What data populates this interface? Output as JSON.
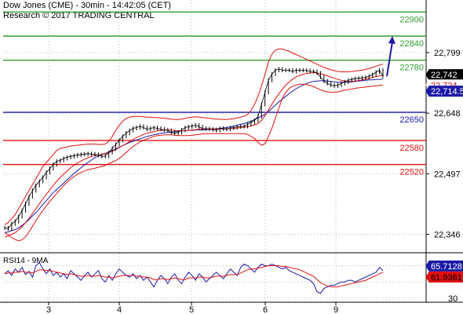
{
  "header": {
    "title": "Dow Jones (CME) - 30min - 14:42:05 (CET)",
    "research": "Research © 2017 TRADING CENTRAL"
  },
  "chart_data": [
    {
      "type": "line",
      "panel": "price",
      "x_ticks": [
        "3",
        "4",
        "5",
        "6",
        "9"
      ],
      "ylim": [
        22300,
        22930
      ],
      "y_ticks": [
        22346,
        22497,
        22648,
        22799
      ],
      "y_tick_labels": [
        "22,346",
        "22,497",
        "22,648",
        "22,799"
      ],
      "grid": true,
      "levels": [
        {
          "value": 22900,
          "label": "22900",
          "color": "#2e9e2e"
        },
        {
          "value": 22840,
          "label": "22840",
          "color": "#2e9e2e"
        },
        {
          "value": 22780,
          "label": "22780",
          "color": "#2e9e2e"
        },
        {
          "value": 22650,
          "label": "22650",
          "color": "#1a1aa6"
        },
        {
          "value": 22580,
          "label": "22580",
          "color": "#e01010"
        },
        {
          "value": 22520,
          "label": "22520",
          "color": "#e01010"
        }
      ],
      "price_markers": [
        {
          "value": 22742,
          "label": "22,742",
          "bg": "#000000",
          "fg": "#ffffff"
        },
        {
          "value": 22724,
          "label": "22,724",
          "bg": "#ffffff",
          "fg": "#d01010"
        },
        {
          "value": 22714.5,
          "label": "22,714.5",
          "bg": "#1a1aa6",
          "fg": "#ffffff"
        }
      ],
      "projection": {
        "from": 22740,
        "to": 22840,
        "color": "#1a1aa6"
      },
      "series": [
        {
          "role": "price",
          "color": "#000000",
          "values": [
            22362,
            22360,
            22372,
            22378,
            22390,
            22405,
            22422,
            22440,
            22455,
            22468,
            22478,
            22488,
            22500,
            22510,
            22520,
            22528,
            22530,
            22535,
            22538,
            22540,
            22542,
            22544,
            22545,
            22546,
            22547,
            22546,
            22545,
            22543,
            22540,
            22541,
            22550,
            22560,
            22570,
            22580,
            22590,
            22598,
            22605,
            22610,
            22612,
            22615,
            22612,
            22608,
            22610,
            22612,
            22610,
            22608,
            22606,
            22605,
            22600,
            22598,
            22600,
            22606,
            22612,
            22614,
            22616,
            22618,
            22614,
            22610,
            22609,
            22608,
            22607,
            22605,
            22610,
            22609,
            22608,
            22611,
            22612,
            22614,
            22615,
            22615,
            22620,
            22625,
            22630,
            22640,
            22670,
            22700,
            22730,
            22745,
            22755,
            22758,
            22755,
            22755,
            22755,
            22752,
            22755,
            22755,
            22755,
            22754,
            22752,
            22752,
            22748,
            22738,
            22728,
            22722,
            22718,
            22716,
            22718,
            22722,
            22726,
            22730,
            22732,
            22734,
            22735,
            22736,
            22737,
            22740,
            22744,
            22750,
            22755,
            22740
          ]
        },
        {
          "role": "moving-average",
          "color": "#1a1aa6",
          "values": [
            22350,
            22352,
            22355,
            22358,
            22362,
            22368,
            22375,
            22383,
            22392,
            22400,
            22410,
            22420,
            22430,
            22440,
            22450,
            22458,
            22466,
            22474,
            22482,
            22490,
            22498,
            22505,
            22512,
            22519,
            22525,
            22531,
            22537,
            22541,
            22545,
            22548,
            22551,
            22555,
            22559,
            22563,
            22567,
            22571,
            22575,
            22578,
            22581,
            22584,
            22587,
            22590,
            22592,
            22594,
            22596,
            22598,
            22599,
            22600,
            22601,
            22602,
            22603,
            22604,
            22604,
            22605,
            22605,
            22606,
            22606,
            22606,
            22607,
            22608,
            22608,
            22609,
            22610,
            22611,
            22612,
            22614,
            22616,
            22618,
            22620,
            22622,
            22625,
            22628,
            22632,
            22636,
            22640,
            22645,
            22652,
            22660,
            22668,
            22676,
            22683,
            22690,
            22697,
            22703,
            22709,
            22714,
            22718,
            22722,
            22725,
            22727,
            22728,
            22729,
            22729,
            22728,
            22727,
            22726,
            22725,
            22725,
            22725,
            22725,
            22726,
            22727,
            22728,
            22729,
            22730,
            22731,
            22731,
            22732,
            22732,
            22733
          ]
        },
        {
          "role": "bollinger-middle",
          "color": "#e01010",
          "values": [
            22340,
            22342,
            22346,
            22350,
            22357,
            22365,
            22375,
            22386,
            22398,
            22410,
            22422,
            22434,
            22446,
            22457,
            22468,
            22478,
            22488,
            22496,
            22504,
            22512,
            22518,
            22524,
            22529,
            22533,
            22537,
            22540,
            22542,
            22544,
            22545,
            22547,
            22550,
            22553,
            22557,
            22562,
            22567,
            22572,
            22577,
            22582,
            22587,
            22591,
            22595,
            22598,
            22600,
            22602,
            22604,
            22605,
            22606,
            22606,
            22606,
            22605,
            22604,
            22604,
            22604,
            22605,
            22606,
            22607,
            22608,
            22609,
            22609,
            22609,
            22609,
            22609,
            22609,
            22609,
            22609,
            22610,
            22610,
            22611,
            22612,
            22613,
            22614,
            22616,
            22619,
            22622,
            22630,
            22642,
            22656,
            22670,
            22684,
            22696,
            22708,
            22718,
            22726,
            22733,
            22738,
            22742,
            22745,
            22747,
            22748,
            22749,
            22748,
            22746,
            22744,
            22741,
            22738,
            22735,
            22732,
            22730,
            22728,
            22727,
            22727,
            22728,
            22729,
            22731,
            22733,
            22735,
            22737,
            22739,
            22741,
            22742
          ]
        },
        {
          "role": "bollinger-upper",
          "color": "#e01010",
          "values": [
            22370,
            22375,
            22385,
            22395,
            22410,
            22425,
            22440,
            22455,
            22470,
            22485,
            22500,
            22515,
            22525,
            22535,
            22545,
            22555,
            22560,
            22562,
            22564,
            22566,
            22567,
            22568,
            22569,
            22570,
            22571,
            22571,
            22571,
            22570,
            22570,
            22571,
            22578,
            22590,
            22605,
            22618,
            22628,
            22635,
            22638,
            22640,
            22640,
            22640,
            22639,
            22638,
            22638,
            22637,
            22637,
            22636,
            22635,
            22634,
            22633,
            22632,
            22632,
            22633,
            22635,
            22637,
            22638,
            22639,
            22638,
            22637,
            22636,
            22635,
            22634,
            22633,
            22633,
            22632,
            22632,
            22633,
            22634,
            22636,
            22638,
            22640,
            22645,
            22655,
            22670,
            22690,
            22715,
            22745,
            22775,
            22795,
            22805,
            22808,
            22808,
            22805,
            22802,
            22798,
            22794,
            22790,
            22786,
            22782,
            22778,
            22774,
            22770,
            22766,
            22762,
            22759,
            22756,
            22754,
            22752,
            22751,
            22751,
            22751,
            22752,
            22753,
            22754,
            22755,
            22757,
            22759,
            22762,
            22765,
            22768,
            22770
          ]
        },
        {
          "role": "bollinger-lower",
          "color": "#e01010",
          "values": [
            22350,
            22345,
            22338,
            22333,
            22330,
            22332,
            22340,
            22352,
            22366,
            22380,
            22393,
            22405,
            22417,
            22428,
            22438,
            22448,
            22458,
            22468,
            22476,
            22484,
            22490,
            22496,
            22500,
            22504,
            22507,
            22509,
            22511,
            22513,
            22515,
            22518,
            22522,
            22526,
            22530,
            22535,
            22542,
            22550,
            22558,
            22565,
            22571,
            22576,
            22580,
            22584,
            22587,
            22590,
            22592,
            22593,
            22594,
            22594,
            22594,
            22593,
            22592,
            22592,
            22592,
            22592,
            22593,
            22594,
            22595,
            22596,
            22597,
            22597,
            22597,
            22597,
            22597,
            22597,
            22597,
            22597,
            22597,
            22597,
            22597,
            22597,
            22595,
            22590,
            22585,
            22575,
            22568,
            22572,
            22590,
            22610,
            22635,
            22660,
            22685,
            22700,
            22710,
            22715,
            22718,
            22720,
            22720,
            22719,
            22717,
            22714,
            22710,
            22706,
            22703,
            22701,
            22700,
            22700,
            22701,
            22703,
            22705,
            22707,
            22708,
            22710,
            22711,
            22712,
            22713,
            22714,
            22715,
            22716,
            22717,
            22718
          ]
        }
      ]
    },
    {
      "type": "line",
      "panel": "rsi",
      "title": "RSI14 - 9MA",
      "x_ticks": [
        "3",
        "4",
        "5",
        "6",
        "9"
      ],
      "y_ticks": [
        30
      ],
      "ylim": [
        25,
        85
      ],
      "price_markers": [
        {
          "value": 65.7128,
          "label": "65.7128",
          "bg": "#1a1aa6",
          "fg": "#ffffff"
        },
        {
          "value": 61.9361,
          "label": "61.9361",
          "bg": "#e01010",
          "fg": "#000000"
        }
      ],
      "series": [
        {
          "role": "rsi",
          "color": "#1a1aa6",
          "values": [
            60,
            64,
            58,
            66,
            62,
            68,
            59,
            63,
            56,
            70,
            74,
            66,
            60,
            66,
            58,
            62,
            56,
            60,
            54,
            64,
            60,
            56,
            52,
            58,
            62,
            56,
            60,
            64,
            54,
            50,
            58,
            52,
            60,
            66,
            62,
            58,
            56,
            60,
            54,
            58,
            52,
            56,
            50,
            44,
            52,
            58,
            54,
            48,
            56,
            60,
            52,
            48,
            56,
            62,
            58,
            52,
            60,
            56,
            50,
            54,
            58,
            62,
            58,
            54,
            60,
            66,
            62,
            58,
            68,
            72,
            70,
            66,
            62,
            68,
            72,
            70,
            70,
            72,
            70,
            68,
            66,
            68,
            64,
            62,
            60,
            58,
            56,
            54,
            52,
            48,
            38,
            36,
            42,
            44,
            46,
            46,
            48,
            50,
            50,
            52,
            52,
            50,
            52,
            54,
            56,
            58,
            60,
            62,
            68,
            64
          ]
        },
        {
          "role": "rsi-ma",
          "color": "#e01010",
          "values": [
            60,
            61,
            61,
            62,
            62,
            63,
            62,
            62,
            61,
            63,
            65,
            65,
            64,
            64,
            63,
            62,
            61,
            60,
            59,
            60,
            59,
            58,
            57,
            57,
            58,
            57,
            57,
            58,
            57,
            56,
            56,
            55,
            56,
            57,
            58,
            58,
            58,
            58,
            57,
            57,
            56,
            56,
            55,
            53,
            53,
            54,
            54,
            53,
            54,
            55,
            54,
            53,
            53,
            55,
            55,
            55,
            56,
            56,
            55,
            55,
            56,
            57,
            57,
            57,
            58,
            59,
            59,
            59,
            61,
            63,
            65,
            66,
            66,
            67,
            68,
            69,
            70,
            70,
            70,
            70,
            69,
            69,
            68,
            67,
            66,
            65,
            63,
            61,
            59,
            57,
            53,
            49,
            47,
            45,
            44,
            44,
            44,
            45,
            46,
            47,
            48,
            49,
            50,
            51,
            52,
            54,
            56,
            58,
            60,
            62
          ]
        }
      ]
    }
  ]
}
